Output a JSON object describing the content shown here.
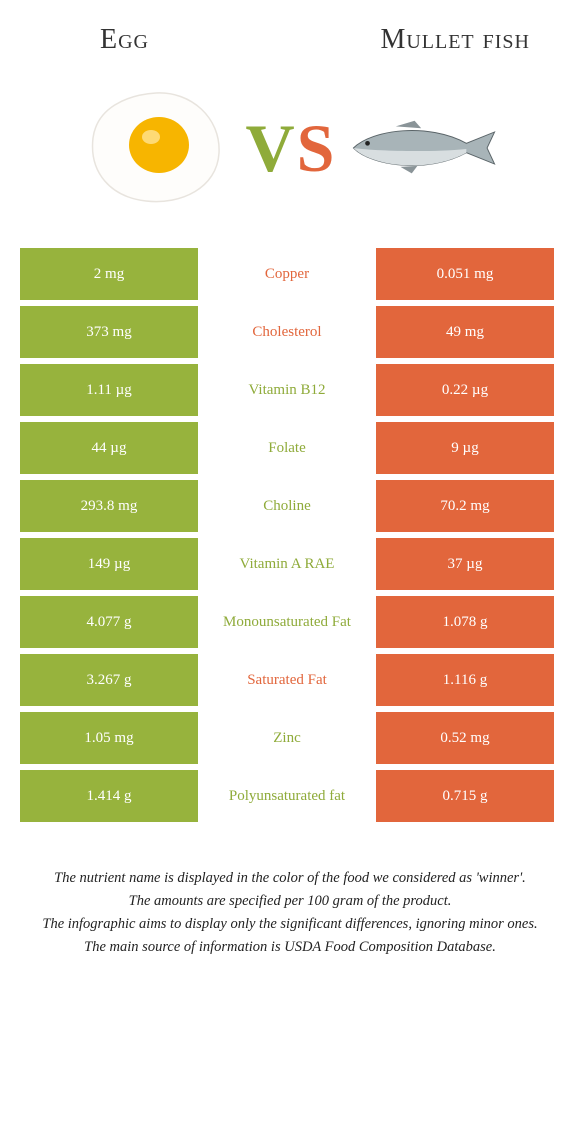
{
  "colors": {
    "left_bg": "#97b33d",
    "right_bg": "#e2663c",
    "left_text": "#8fab3a",
    "right_text": "#e2663c",
    "white": "#ffffff"
  },
  "header": {
    "left_title": "Egg",
    "right_title": "Mullet fish"
  },
  "vs": {
    "v": "V",
    "s": "S"
  },
  "rows": [
    {
      "left": "2 mg",
      "label": "Copper",
      "right": "0.051 mg",
      "winner": "right"
    },
    {
      "left": "373 mg",
      "label": "Cholesterol",
      "right": "49 mg",
      "winner": "right"
    },
    {
      "left": "1.11 µg",
      "label": "Vitamin B12",
      "right": "0.22 µg",
      "winner": "left"
    },
    {
      "left": "44 µg",
      "label": "Folate",
      "right": "9 µg",
      "winner": "left"
    },
    {
      "left": "293.8 mg",
      "label": "Choline",
      "right": "70.2 mg",
      "winner": "left"
    },
    {
      "left": "149 µg",
      "label": "Vitamin A RAE",
      "right": "37 µg",
      "winner": "left"
    },
    {
      "left": "4.077 g",
      "label": "Monounsaturated Fat",
      "right": "1.078 g",
      "winner": "left"
    },
    {
      "left": "3.267 g",
      "label": "Saturated Fat",
      "right": "1.116 g",
      "winner": "right"
    },
    {
      "left": "1.05 mg",
      "label": "Zinc",
      "right": "0.52 mg",
      "winner": "left"
    },
    {
      "left": "1.414 g",
      "label": "Polyunsaturated fat",
      "right": "0.715 g",
      "winner": "left"
    }
  ],
  "footer": {
    "l1": "The nutrient name is displayed in the color of the food we considered as 'winner'.",
    "l2": "The amounts are specified per 100 gram of the product.",
    "l3": "The infographic aims to display only the significant differences, ignoring minor ones.",
    "l4": "The main source of information is USDA Food Composition Database."
  }
}
